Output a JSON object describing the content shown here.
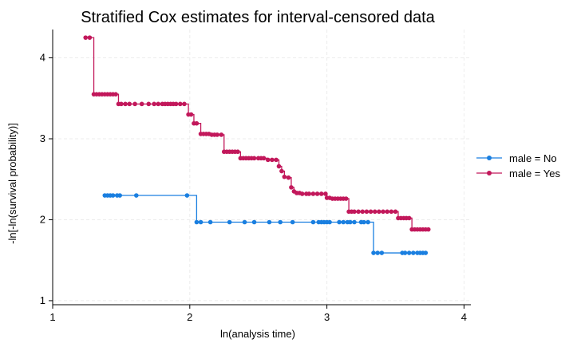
{
  "chart_data": {
    "type": "line",
    "step": true,
    "title": "Stratified Cox estimates for interval-censored data",
    "xlabel": "ln(analysis time)",
    "ylabel": "-ln[-ln(survival probability)]",
    "xlim": [
      1,
      4
    ],
    "ylim": [
      0.95,
      4.35
    ],
    "xticks": [
      1,
      2,
      3,
      4
    ],
    "xtick_labels": [
      "1",
      "2",
      "3",
      "4"
    ],
    "yticks": [
      1,
      2,
      3,
      4
    ],
    "ytick_labels": [
      "1",
      "2",
      "3",
      "4"
    ],
    "grid": true,
    "legend_position": "right",
    "series": [
      {
        "name": "male = No",
        "color": "#1a7fe0",
        "x": [
          1.38,
          1.4,
          1.42,
          1.44,
          1.47,
          1.49,
          1.61,
          1.98,
          2.05,
          2.08,
          2.15,
          2.29,
          2.4,
          2.47,
          2.58,
          2.66,
          2.75,
          2.9,
          2.94,
          2.96,
          2.98,
          3.0,
          3.02,
          3.09,
          3.12,
          3.15,
          3.17,
          3.2,
          3.25,
          3.27,
          3.3,
          3.34,
          3.37,
          3.4,
          3.55,
          3.57,
          3.6,
          3.63,
          3.66,
          3.68,
          3.7,
          3.72
        ],
        "y": [
          2.3,
          2.3,
          2.3,
          2.3,
          2.3,
          2.3,
          2.3,
          2.3,
          1.97,
          1.97,
          1.97,
          1.97,
          1.97,
          1.97,
          1.97,
          1.97,
          1.97,
          1.97,
          1.97,
          1.97,
          1.97,
          1.97,
          1.97,
          1.97,
          1.97,
          1.97,
          1.97,
          1.97,
          1.97,
          1.97,
          1.97,
          1.59,
          1.59,
          1.59,
          1.59,
          1.59,
          1.59,
          1.59,
          1.59,
          1.59,
          1.59,
          1.59
        ]
      },
      {
        "name": "male = Yes",
        "color": "#c2185b",
        "x": [
          1.24,
          1.27,
          1.3,
          1.32,
          1.34,
          1.36,
          1.38,
          1.4,
          1.42,
          1.44,
          1.46,
          1.48,
          1.5,
          1.53,
          1.56,
          1.6,
          1.65,
          1.7,
          1.74,
          1.77,
          1.8,
          1.82,
          1.84,
          1.86,
          1.88,
          1.9,
          1.93,
          1.96,
          1.99,
          2.01,
          2.03,
          2.05,
          2.08,
          2.1,
          2.12,
          2.14,
          2.16,
          2.18,
          2.2,
          2.23,
          2.25,
          2.27,
          2.29,
          2.31,
          2.33,
          2.35,
          2.37,
          2.39,
          2.41,
          2.43,
          2.45,
          2.47,
          2.5,
          2.52,
          2.54,
          2.57,
          2.6,
          2.63,
          2.65,
          2.67,
          2.69,
          2.72,
          2.74,
          2.76,
          2.78,
          2.8,
          2.82,
          2.85,
          2.87,
          2.9,
          2.93,
          2.96,
          2.99,
          3.0,
          3.02,
          3.04,
          3.06,
          3.08,
          3.1,
          3.12,
          3.14,
          3.16,
          3.18,
          3.2,
          3.23,
          3.26,
          3.29,
          3.32,
          3.35,
          3.38,
          3.41,
          3.44,
          3.47,
          3.5,
          3.52,
          3.54,
          3.56,
          3.58,
          3.6,
          3.62,
          3.64,
          3.66,
          3.68,
          3.7,
          3.72,
          3.74
        ],
        "y": [
          4.25,
          4.25,
          3.55,
          3.55,
          3.55,
          3.55,
          3.55,
          3.55,
          3.55,
          3.55,
          3.55,
          3.43,
          3.43,
          3.43,
          3.43,
          3.43,
          3.43,
          3.43,
          3.43,
          3.43,
          3.43,
          3.43,
          3.43,
          3.43,
          3.43,
          3.43,
          3.43,
          3.43,
          3.3,
          3.3,
          3.19,
          3.19,
          3.06,
          3.06,
          3.06,
          3.06,
          3.05,
          3.05,
          3.05,
          3.05,
          2.84,
          2.84,
          2.84,
          2.84,
          2.84,
          2.84,
          2.76,
          2.76,
          2.76,
          2.76,
          2.76,
          2.76,
          2.76,
          2.76,
          2.76,
          2.74,
          2.74,
          2.74,
          2.66,
          2.6,
          2.53,
          2.52,
          2.4,
          2.35,
          2.33,
          2.33,
          2.32,
          2.32,
          2.32,
          2.32,
          2.32,
          2.32,
          2.32,
          2.27,
          2.27,
          2.26,
          2.26,
          2.26,
          2.26,
          2.26,
          2.26,
          2.1,
          2.1,
          2.1,
          2.1,
          2.1,
          2.1,
          2.1,
          2.1,
          2.1,
          2.1,
          2.1,
          2.1,
          2.1,
          2.02,
          2.02,
          2.02,
          2.02,
          2.02,
          1.88,
          1.88,
          1.88,
          1.88,
          1.88,
          1.88,
          1.88
        ]
      }
    ]
  }
}
